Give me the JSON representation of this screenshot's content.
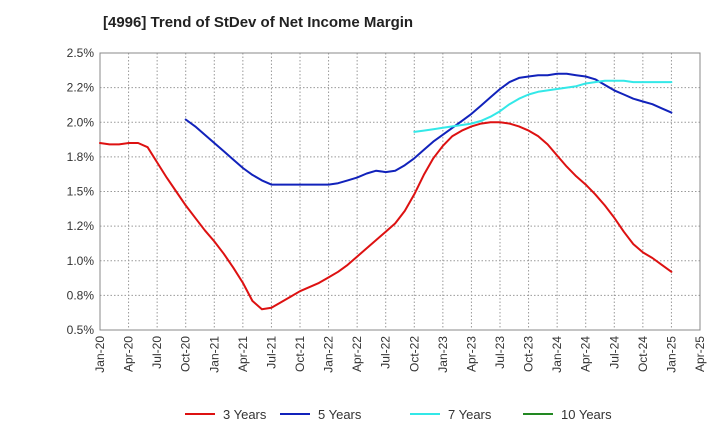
{
  "chart_data": {
    "type": "line",
    "title": "[4996]  Trend of StDev of Net Income Margin",
    "xlabel": "",
    "ylabel": "",
    "ylim": [
      0.5,
      2.5
    ],
    "y_ticks": [
      {
        "value": 0.5,
        "label": "0.5%"
      },
      {
        "value": 0.75,
        "label": "0.8%"
      },
      {
        "value": 1.0,
        "label": "1.0%"
      },
      {
        "value": 1.25,
        "label": "1.2%"
      },
      {
        "value": 1.5,
        "label": "1.5%"
      },
      {
        "value": 1.75,
        "label": "1.8%"
      },
      {
        "value": 2.0,
        "label": "2.0%"
      },
      {
        "value": 2.25,
        "label": "2.2%"
      },
      {
        "value": 2.5,
        "label": "2.5%"
      }
    ],
    "x_ticks": [
      "Jan-20",
      "Apr-20",
      "Jul-20",
      "Oct-20",
      "Jan-21",
      "Apr-21",
      "Jul-21",
      "Oct-21",
      "Jan-22",
      "Apr-22",
      "Jul-22",
      "Oct-22",
      "Jan-23",
      "Apr-23",
      "Jul-23",
      "Oct-23",
      "Jan-24",
      "Apr-24",
      "Jul-24",
      "Oct-24",
      "Jan-25",
      "Apr-25"
    ],
    "grid": true,
    "legend_position": "bottom",
    "series": [
      {
        "name": "3 Years",
        "color": "#dd1111",
        "points": [
          [
            "Jan-20",
            1.85
          ],
          [
            "Feb-20",
            1.84
          ],
          [
            "Mar-20",
            1.84
          ],
          [
            "Apr-20",
            1.85
          ],
          [
            "May-20",
            1.85
          ],
          [
            "Jun-20",
            1.82
          ],
          [
            "Jul-20",
            1.71
          ],
          [
            "Aug-20",
            1.6
          ],
          [
            "Sep-20",
            1.5
          ],
          [
            "Oct-20",
            1.4
          ],
          [
            "Nov-20",
            1.31
          ],
          [
            "Dec-20",
            1.22
          ],
          [
            "Jan-21",
            1.14
          ],
          [
            "Feb-21",
            1.05
          ],
          [
            "Mar-21",
            0.95
          ],
          [
            "Apr-21",
            0.84
          ],
          [
            "May-21",
            0.71
          ],
          [
            "Jun-21",
            0.65
          ],
          [
            "Jul-21",
            0.66
          ],
          [
            "Aug-21",
            0.7
          ],
          [
            "Sep-21",
            0.74
          ],
          [
            "Oct-21",
            0.78
          ],
          [
            "Nov-21",
            0.81
          ],
          [
            "Dec-21",
            0.84
          ],
          [
            "Jan-22",
            0.88
          ],
          [
            "Feb-22",
            0.92
          ],
          [
            "Mar-22",
            0.97
          ],
          [
            "Apr-22",
            1.03
          ],
          [
            "May-22",
            1.09
          ],
          [
            "Jun-22",
            1.15
          ],
          [
            "Jul-22",
            1.21
          ],
          [
            "Aug-22",
            1.27
          ],
          [
            "Sep-22",
            1.36
          ],
          [
            "Oct-22",
            1.48
          ],
          [
            "Nov-22",
            1.62
          ],
          [
            "Dec-22",
            1.74
          ],
          [
            "Jan-23",
            1.83
          ],
          [
            "Feb-23",
            1.9
          ],
          [
            "Mar-23",
            1.94
          ],
          [
            "Apr-23",
            1.97
          ],
          [
            "May-23",
            1.99
          ],
          [
            "Jun-23",
            2.0
          ],
          [
            "Jul-23",
            2.0
          ],
          [
            "Aug-23",
            1.99
          ],
          [
            "Sep-23",
            1.97
          ],
          [
            "Oct-23",
            1.94
          ],
          [
            "Nov-23",
            1.9
          ],
          [
            "Dec-23",
            1.84
          ],
          [
            "Jan-24",
            1.76
          ],
          [
            "Feb-24",
            1.68
          ],
          [
            "Mar-24",
            1.61
          ],
          [
            "Apr-24",
            1.55
          ],
          [
            "May-24",
            1.48
          ],
          [
            "Jun-24",
            1.4
          ],
          [
            "Jul-24",
            1.31
          ],
          [
            "Aug-24",
            1.21
          ],
          [
            "Sep-24",
            1.12
          ],
          [
            "Oct-24",
            1.06
          ],
          [
            "Nov-24",
            1.02
          ],
          [
            "Dec-24",
            0.97
          ],
          [
            "Jan-25",
            0.92
          ]
        ]
      },
      {
        "name": "5 Years",
        "color": "#1122bb",
        "points": [
          [
            "Oct-20",
            2.02
          ],
          [
            "Nov-20",
            1.97
          ],
          [
            "Dec-20",
            1.91
          ],
          [
            "Jan-21",
            1.85
          ],
          [
            "Feb-21",
            1.79
          ],
          [
            "Mar-21",
            1.73
          ],
          [
            "Apr-21",
            1.67
          ],
          [
            "May-21",
            1.62
          ],
          [
            "Jun-21",
            1.58
          ],
          [
            "Jul-21",
            1.55
          ],
          [
            "Aug-21",
            1.55
          ],
          [
            "Sep-21",
            1.55
          ],
          [
            "Oct-21",
            1.55
          ],
          [
            "Nov-21",
            1.55
          ],
          [
            "Dec-21",
            1.55
          ],
          [
            "Jan-22",
            1.55
          ],
          [
            "Feb-22",
            1.56
          ],
          [
            "Mar-22",
            1.58
          ],
          [
            "Apr-22",
            1.6
          ],
          [
            "May-22",
            1.63
          ],
          [
            "Jun-22",
            1.65
          ],
          [
            "Jul-22",
            1.64
          ],
          [
            "Aug-22",
            1.65
          ],
          [
            "Sep-22",
            1.69
          ],
          [
            "Oct-22",
            1.74
          ],
          [
            "Nov-22",
            1.8
          ],
          [
            "Dec-22",
            1.86
          ],
          [
            "Jan-23",
            1.91
          ],
          [
            "Feb-23",
            1.96
          ],
          [
            "Mar-23",
            2.01
          ],
          [
            "Apr-23",
            2.06
          ],
          [
            "May-23",
            2.12
          ],
          [
            "Jun-23",
            2.18
          ],
          [
            "Jul-23",
            2.24
          ],
          [
            "Aug-23",
            2.29
          ],
          [
            "Sep-23",
            2.32
          ],
          [
            "Oct-23",
            2.33
          ],
          [
            "Nov-23",
            2.34
          ],
          [
            "Dec-23",
            2.34
          ],
          [
            "Jan-24",
            2.35
          ],
          [
            "Feb-24",
            2.35
          ],
          [
            "Mar-24",
            2.34
          ],
          [
            "Apr-24",
            2.33
          ],
          [
            "May-24",
            2.31
          ],
          [
            "Jun-24",
            2.27
          ],
          [
            "Jul-24",
            2.23
          ],
          [
            "Aug-24",
            2.2
          ],
          [
            "Sep-24",
            2.17
          ],
          [
            "Oct-24",
            2.15
          ],
          [
            "Nov-24",
            2.13
          ],
          [
            "Dec-24",
            2.1
          ],
          [
            "Jan-25",
            2.07
          ]
        ]
      },
      {
        "name": "7 Years",
        "color": "#33e8e8",
        "points": [
          [
            "Oct-22",
            1.93
          ],
          [
            "Nov-22",
            1.94
          ],
          [
            "Dec-22",
            1.95
          ],
          [
            "Jan-23",
            1.96
          ],
          [
            "Feb-23",
            1.97
          ],
          [
            "Mar-23",
            1.98
          ],
          [
            "Apr-23",
            1.99
          ],
          [
            "May-23",
            2.01
          ],
          [
            "Jun-23",
            2.04
          ],
          [
            "Jul-23",
            2.08
          ],
          [
            "Aug-23",
            2.13
          ],
          [
            "Sep-23",
            2.17
          ],
          [
            "Oct-23",
            2.2
          ],
          [
            "Nov-23",
            2.22
          ],
          [
            "Dec-23",
            2.23
          ],
          [
            "Jan-24",
            2.24
          ],
          [
            "Feb-24",
            2.25
          ],
          [
            "Mar-24",
            2.26
          ],
          [
            "Apr-24",
            2.28
          ],
          [
            "May-24",
            2.29
          ],
          [
            "Jun-24",
            2.3
          ],
          [
            "Jul-24",
            2.3
          ],
          [
            "Aug-24",
            2.3
          ],
          [
            "Sep-24",
            2.29
          ],
          [
            "Oct-24",
            2.29
          ],
          [
            "Nov-24",
            2.29
          ],
          [
            "Dec-24",
            2.29
          ],
          [
            "Jan-25",
            2.29
          ]
        ]
      },
      {
        "name": "10 Years",
        "color": "#228822",
        "points": []
      }
    ]
  }
}
